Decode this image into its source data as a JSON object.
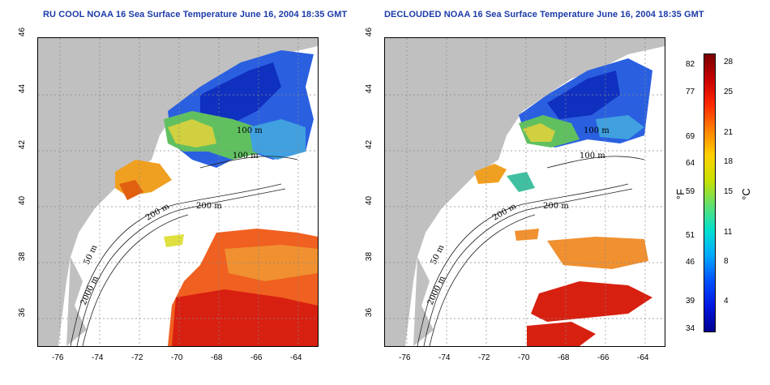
{
  "titles": {
    "left": "RU COOL NOAA 16 Sea Surface Temperature June 16, 2004 18:35 GMT",
    "right": "DECLOUDED NOAA 16 Sea Surface Temperature June 16, 2004 18:35 GMT"
  },
  "axes": {
    "lat_ticks": [
      "46",
      "44",
      "42",
      "40",
      "38",
      "36"
    ],
    "lon_ticks": [
      "-76",
      "-74",
      "-72",
      "-70",
      "-68",
      "-66",
      "-64"
    ]
  },
  "contour_labels": [
    "100 m",
    "100 m",
    "200 m",
    "200 m",
    "50 m",
    "2000 m"
  ],
  "colorbar": {
    "fahrenheit_ticks": [
      "82",
      "77",
      "69",
      "64",
      "59",
      "51",
      "46",
      "39",
      "34"
    ],
    "celsius_ticks": [
      "28",
      "25",
      "21",
      "18",
      "15",
      "11",
      "8",
      "4"
    ],
    "fahrenheit_unit": "°F",
    "celsius_unit": "°C"
  },
  "colors": {
    "land": "#c0c0c0",
    "title": "#1a3aa8",
    "warm": "#e02000",
    "cool": "#1040e0"
  }
}
